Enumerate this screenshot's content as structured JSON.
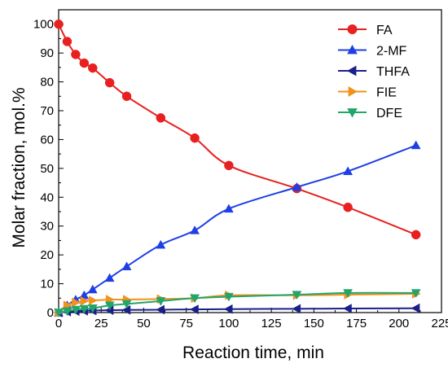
{
  "chart_data": {
    "type": "line",
    "xlabel": "Reaction time, min",
    "ylabel": "Molar fraction, mol.%",
    "xlim": [
      0,
      225
    ],
    "ylim": [
      0,
      105
    ],
    "xticks": [
      "0",
      "25",
      "50",
      "75",
      "100",
      "125",
      "150",
      "175",
      "200",
      "225"
    ],
    "yticks": [
      "0",
      "10",
      "20",
      "30",
      "40",
      "50",
      "60",
      "70",
      "80",
      "90",
      "100"
    ],
    "grid": false,
    "legend_position": "top-right",
    "series": [
      {
        "name": "FA",
        "color": "#e8201f",
        "marker": "circle",
        "x": [
          0,
          5,
          10,
          15,
          20,
          30,
          40,
          60,
          80,
          100,
          140,
          170,
          210
        ],
        "y": [
          100,
          94,
          89.5,
          86.5,
          84.8,
          79.7,
          75,
          67.5,
          60.5,
          51,
          43,
          36.5,
          27
        ]
      },
      {
        "name": "2-MF",
        "color": "#1f3fe6",
        "marker": "triangle-up",
        "x": [
          0,
          5,
          10,
          15,
          20,
          30,
          40,
          60,
          80,
          100,
          140,
          170,
          210
        ],
        "y": [
          0,
          2.5,
          4.5,
          6,
          8,
          12,
          16,
          23.5,
          28.5,
          36,
          43.5,
          49,
          58
        ]
      },
      {
        "name": "THFA",
        "color": "#1b1f8a",
        "marker": "triangle-left",
        "x": [
          0,
          5,
          10,
          15,
          20,
          30,
          40,
          60,
          80,
          100,
          140,
          170,
          210
        ],
        "y": [
          0,
          0.3,
          0.5,
          0.6,
          0.7,
          0.8,
          0.9,
          1.0,
          1.1,
          1.2,
          1.3,
          1.4,
          1.5
        ]
      },
      {
        "name": "FIE",
        "color": "#f2911b",
        "marker": "triangle-right",
        "x": [
          0,
          5,
          10,
          15,
          20,
          30,
          40,
          60,
          80,
          100,
          140,
          170,
          210
        ],
        "y": [
          0,
          2.5,
          3.5,
          4,
          4.2,
          4.5,
          4.5,
          4.7,
          5,
          6,
          6,
          6.2,
          6.5
        ]
      },
      {
        "name": "DFE",
        "color": "#22a56b",
        "marker": "triangle-down",
        "x": [
          0,
          5,
          10,
          15,
          20,
          30,
          40,
          60,
          80,
          100,
          140,
          170,
          210
        ],
        "y": [
          0,
          0.5,
          1,
          1.3,
          1.5,
          2.5,
          3,
          4,
          5,
          5.5,
          6.2,
          6.8,
          6.8
        ]
      }
    ]
  }
}
